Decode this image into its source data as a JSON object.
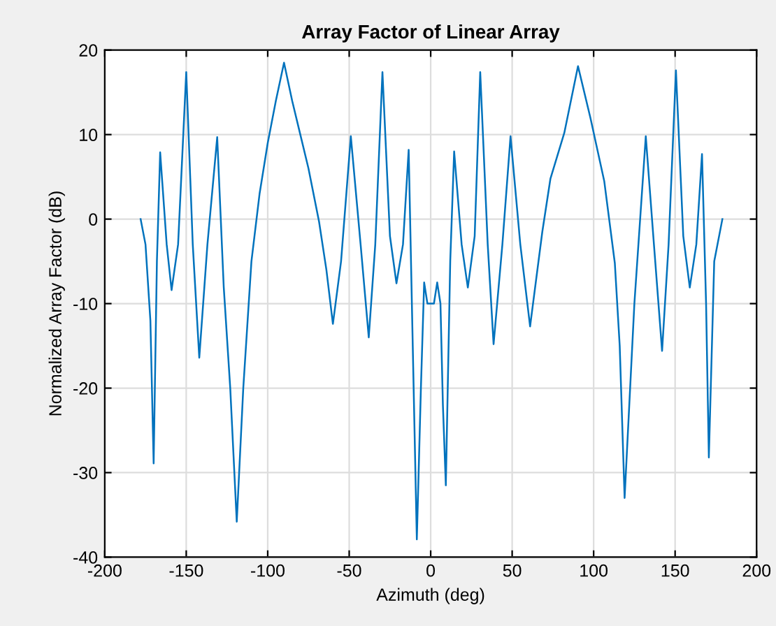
{
  "chart_data": {
    "type": "line",
    "title": "Array Factor of Linear Array",
    "xlabel": "Azimuth (deg)",
    "ylabel": "Normalized Array Factor (dB)",
    "xlim": [
      -200,
      200
    ],
    "xticks": [
      -200,
      -150,
      -100,
      -50,
      0,
      50,
      100,
      150,
      200
    ],
    "ylim": [
      -40,
      20
    ],
    "yticks": [
      -40,
      -30,
      -20,
      -10,
      0,
      10,
      20
    ],
    "grid": true,
    "marker": "none",
    "line_style": "solid",
    "series": [
      {
        "color": "#0072bd",
        "x": [
          -178,
          -175,
          -172,
          -170,
          -168,
          -166,
          -162,
          -159,
          -155,
          -150,
          -146,
          -142,
          -137,
          -131,
          -127,
          -123,
          -119,
          -115,
          -110,
          -105,
          -100,
          -95,
          -90,
          -85,
          -80,
          -75,
          -68.5,
          -64,
          -60,
          -55,
          -49,
          -43,
          -38,
          -34,
          -29.6,
          -25,
          -21,
          -17,
          -13.5,
          -11,
          -8.5,
          -6,
          -4,
          -2,
          0,
          2,
          4,
          6,
          7.5,
          9.3,
          12,
          14.4,
          19,
          22.8,
          27,
          30.4,
          35,
          38.6,
          44,
          49,
          55,
          61,
          68.5,
          73.5,
          82,
          90.4,
          98,
          106.5,
          113,
          116,
          119,
          125,
          132,
          137,
          142,
          146,
          150.5,
          155,
          159,
          163,
          166.5,
          169,
          170.7,
          174,
          179
        ],
        "values": [
          0,
          -3,
          -12,
          -28.9,
          -5,
          7.9,
          -3,
          -8.4,
          -3,
          17.4,
          -3,
          -16.4,
          -3,
          9.7,
          -8,
          -20,
          -35.8,
          -20,
          -5,
          3,
          9,
          14,
          18.5,
          14,
          10,
          6,
          -0.3,
          -6,
          -12.4,
          -5,
          9.8,
          -3,
          -14,
          -3,
          17.4,
          -2,
          -7.6,
          -3,
          8.2,
          -15,
          -37.9,
          -20,
          -7.5,
          -10,
          -10,
          -10,
          -7.5,
          -10,
          -22,
          -31.5,
          -5,
          8.0,
          -3,
          -8.1,
          -2,
          17.4,
          -3,
          -14.8,
          -3,
          9.8,
          -3,
          -12.7,
          -1.5,
          4.8,
          10.2,
          18.1,
          12,
          4.5,
          -5.2,
          -15,
          -33,
          -10,
          9.8,
          -3,
          -15.6,
          -3,
          17.6,
          -2,
          -8.1,
          -3,
          7.7,
          -10,
          -28.2,
          -5,
          0
        ]
      }
    ]
  }
}
